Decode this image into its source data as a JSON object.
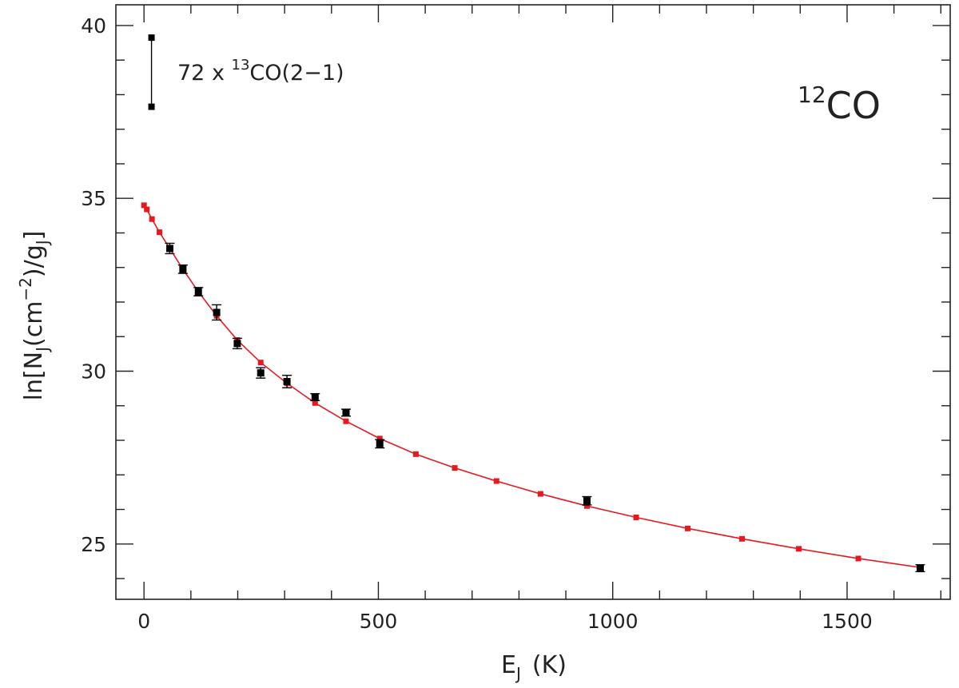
{
  "chart_data": {
    "type": "scatter",
    "title": "",
    "xlabel": {
      "base": "E",
      "sub": "J",
      "unit": "(K)"
    },
    "ylabel": {
      "prefix": "ln[N",
      "sub1": "J",
      "mid": "(cm",
      "sup": "−2",
      "mid2": ")/g",
      "sub2": "J",
      "suffix": "]"
    },
    "xlim": [
      -60,
      1720
    ],
    "ylim": [
      23.4,
      40.6
    ],
    "x_ticks": [
      0,
      500,
      1000,
      1500
    ],
    "y_ticks": [
      25,
      30,
      35,
      40
    ],
    "x_minor_step": 100,
    "y_minor_step": 1,
    "grid": false,
    "annotation": {
      "text": "72 x ",
      "sup": "13",
      "rest": "CO(2−1)",
      "bar_x": 16,
      "bar_y_low": 37.65,
      "bar_y_high": 39.65
    },
    "species_label": {
      "sup": "12",
      "text": "CO"
    },
    "series": [
      {
        "role": "observed",
        "color": "#000000",
        "points": [
          {
            "x": 55,
            "y": 33.55,
            "err": 0.15
          },
          {
            "x": 83,
            "y": 32.95,
            "err": 0.12
          },
          {
            "x": 116,
            "y": 32.3,
            "err": 0.12
          },
          {
            "x": 155,
            "y": 31.7,
            "err": 0.22
          },
          {
            "x": 199,
            "y": 30.8,
            "err": 0.15
          },
          {
            "x": 249,
            "y": 29.95,
            "err": 0.15
          },
          {
            "x": 305,
            "y": 29.7,
            "err": 0.18
          },
          {
            "x": 365,
            "y": 29.25,
            "err": 0.1
          },
          {
            "x": 431,
            "y": 28.8,
            "err": 0.1
          },
          {
            "x": 503,
            "y": 27.9,
            "err": 0.12
          },
          {
            "x": 945,
            "y": 26.25,
            "err": 0.12
          },
          {
            "x": 1656,
            "y": 24.3,
            "err": 0.1
          }
        ]
      },
      {
        "role": "model",
        "color": "#e8191e",
        "points": [
          {
            "x": 0,
            "y": 34.8
          },
          {
            "x": 6,
            "y": 34.68
          },
          {
            "x": 17,
            "y": 34.4
          },
          {
            "x": 33,
            "y": 34.02
          },
          {
            "x": 55,
            "y": 33.55
          },
          {
            "x": 83,
            "y": 32.95
          },
          {
            "x": 116,
            "y": 32.3
          },
          {
            "x": 155,
            "y": 31.6
          },
          {
            "x": 199,
            "y": 30.9
          },
          {
            "x": 249,
            "y": 30.25
          },
          {
            "x": 305,
            "y": 29.65
          },
          {
            "x": 365,
            "y": 29.08
          },
          {
            "x": 431,
            "y": 28.55
          },
          {
            "x": 503,
            "y": 28.05
          },
          {
            "x": 580,
            "y": 27.6
          },
          {
            "x": 663,
            "y": 27.2
          },
          {
            "x": 752,
            "y": 26.82
          },
          {
            "x": 846,
            "y": 26.45
          },
          {
            "x": 945,
            "y": 26.1
          },
          {
            "x": 1050,
            "y": 25.77
          },
          {
            "x": 1160,
            "y": 25.45
          },
          {
            "x": 1276,
            "y": 25.15
          },
          {
            "x": 1397,
            "y": 24.86
          },
          {
            "x": 1524,
            "y": 24.58
          },
          {
            "x": 1656,
            "y": 24.32
          }
        ]
      }
    ]
  }
}
